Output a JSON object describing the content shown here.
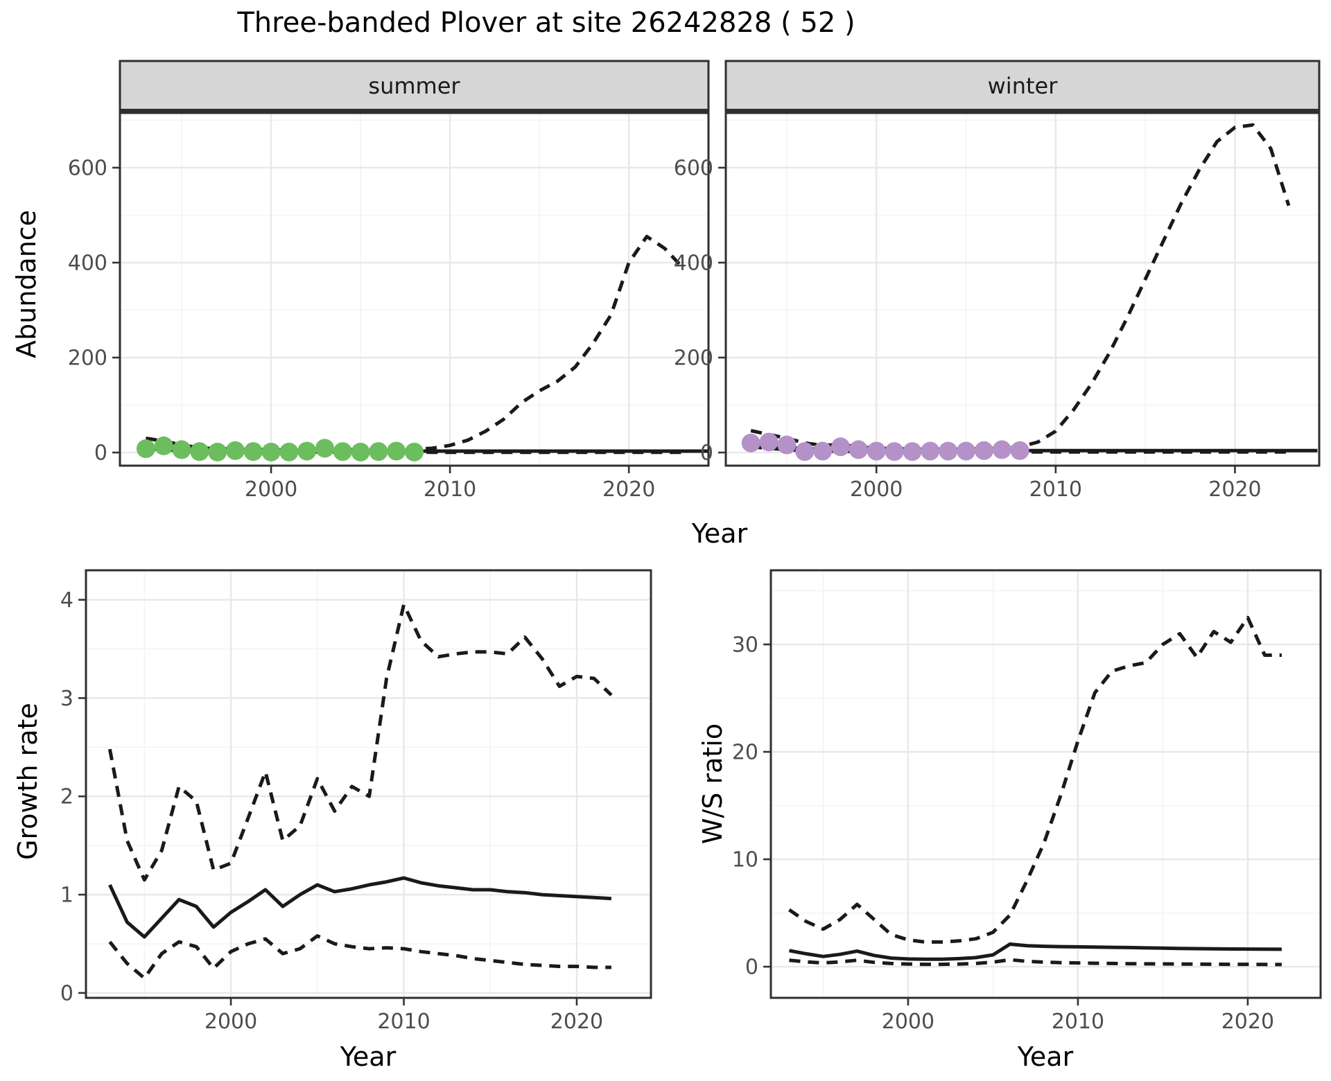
{
  "title": "Three-banded Plover at site 26242828 ( 52 )",
  "colors": {
    "summer_point": "#6cbd5e",
    "winter_point": "#b492c8",
    "line": "#1a1a1a",
    "strip_bg": "#d6d6d6",
    "panel_border": "#2f2f2f",
    "grid_major": "#e8e8e8",
    "grid_minor": "#f4f4f4",
    "tick_label": "#4d4d4d",
    "tick_mark": "#333333"
  },
  "axis_titles": {
    "abundance": "Abundance",
    "year_top": "Year",
    "growth": "Growth rate",
    "year_bottom_left": "Year",
    "ws": "W/S ratio",
    "year_bottom_right": "Year"
  },
  "chart_data": [
    {
      "id": "abundance-summer",
      "type": "line",
      "facet_label": "summer",
      "xlabel": "Year",
      "ylabel": "Abundance",
      "xlim": [
        1991.55,
        2024.45
      ],
      "ylim": [
        -27.7,
        715.3
      ],
      "xticks": [
        2000,
        2010,
        2020
      ],
      "yticks": [
        0,
        200,
        400,
        600
      ],
      "x_minor": [
        1995,
        2005,
        2015
      ],
      "y_minor": [
        100,
        300,
        500,
        700
      ],
      "series": [
        {
          "name": "fit",
          "style": "solid",
          "x": [
            1993,
            1994,
            1995,
            1996,
            1997,
            1998,
            1999,
            2000,
            2001,
            2002,
            2003,
            2004,
            2005,
            2006,
            2007,
            2008,
            2009,
            2010,
            2011,
            2012,
            2013,
            2014,
            2015,
            2016,
            2017,
            2018,
            2019,
            2020,
            2021,
            2022,
            2023,
            2024.4
          ],
          "y": [
            12,
            9,
            7,
            5,
            4,
            4,
            3,
            3,
            3,
            3,
            3,
            3,
            3,
            3,
            3,
            3,
            3,
            3,
            3,
            3,
            3,
            3,
            3,
            3,
            3,
            3,
            3,
            3,
            3,
            3,
            3,
            3
          ]
        },
        {
          "name": "upper_ci",
          "style": "dashed",
          "x": [
            1993,
            1994,
            1995,
            1996,
            1997,
            1998,
            1999,
            2000,
            2001,
            2002,
            2003,
            2004,
            2005,
            2006,
            2007,
            2008,
            2009,
            2010,
            2011,
            2012,
            2013,
            2014,
            2015,
            2016,
            2017,
            2018,
            2019,
            2020,
            2021,
            2022,
            2023
          ],
          "y": [
            30,
            24,
            16,
            10,
            8,
            7,
            6,
            6,
            5,
            5,
            6,
            6,
            6,
            6,
            6,
            7,
            9,
            15,
            26,
            45,
            70,
            105,
            130,
            150,
            180,
            230,
            290,
            400,
            455,
            430,
            390
          ]
        },
        {
          "name": "lower_ci",
          "style": "dashed",
          "x": [
            1993,
            1994,
            1995,
            1996,
            1997,
            1998,
            1999,
            2000,
            2001,
            2002,
            2003,
            2004,
            2005,
            2006,
            2007,
            2008,
            2009,
            2010,
            2011,
            2012,
            2013,
            2014,
            2015,
            2016,
            2017,
            2018,
            2019,
            2020,
            2021,
            2022,
            2023
          ],
          "y": [
            8,
            6,
            4,
            2,
            1,
            1,
            1,
            1,
            1,
            1,
            1,
            1,
            1,
            1,
            1,
            1,
            0.5,
            0.5,
            0.5,
            0.5,
            0.5,
            0.5,
            0.5,
            0.5,
            0.5,
            0.5,
            0.5,
            0.5,
            0.5,
            0.5,
            0.5
          ]
        },
        {
          "name": "observed",
          "style": "points",
          "color_key": "summer_point",
          "x": [
            1993,
            1994,
            1995,
            1996,
            1997,
            1998,
            1999,
            2000,
            2001,
            2002,
            2003,
            2004,
            2005,
            2006,
            2007,
            2008
          ],
          "y": [
            8,
            14,
            6,
            2,
            1,
            4,
            2,
            1,
            1,
            3,
            9,
            2,
            1,
            2,
            3,
            1
          ]
        }
      ]
    },
    {
      "id": "abundance-winter",
      "type": "line",
      "facet_label": "winter",
      "xlabel": "Year",
      "ylabel": "Abundance",
      "xlim": [
        1991.6,
        2024.7
      ],
      "ylim": [
        -27.7,
        715.3
      ],
      "xticks": [
        2000,
        2010,
        2020
      ],
      "yticks": [
        0,
        200,
        400,
        600
      ],
      "x_minor": [
        1995,
        2005,
        2015
      ],
      "y_minor": [
        100,
        300,
        500,
        700
      ],
      "series": [
        {
          "name": "fit",
          "style": "solid",
          "x": [
            1993,
            1994,
            1995,
            1996,
            1997,
            1998,
            1999,
            2000,
            2001,
            2002,
            2003,
            2004,
            2005,
            2006,
            2007,
            2008,
            2009,
            2010,
            2011,
            2012,
            2013,
            2014,
            2015,
            2016,
            2017,
            2018,
            2019,
            2020,
            2021,
            2022,
            2023,
            2024.6
          ],
          "y": [
            18,
            14,
            11,
            8,
            7,
            6,
            5,
            5,
            4,
            4,
            4,
            4,
            4,
            4,
            4,
            4,
            4,
            4,
            4,
            4,
            4,
            4,
            4,
            4,
            4,
            4,
            4,
            4,
            4,
            4,
            4,
            4
          ]
        },
        {
          "name": "upper_ci",
          "style": "dashed",
          "x": [
            1993,
            1994,
            1995,
            1996,
            1997,
            1998,
            1999,
            2000,
            2001,
            2002,
            2003,
            2004,
            2005,
            2006,
            2007,
            2008,
            2009,
            2010,
            2011,
            2012,
            2013,
            2014,
            2015,
            2016,
            2017,
            2018,
            2019,
            2020,
            2021,
            2022,
            2023
          ],
          "y": [
            46,
            38,
            30,
            20,
            15,
            17,
            12,
            9,
            8,
            7,
            7,
            7,
            7,
            8,
            9,
            12,
            22,
            45,
            90,
            145,
            210,
            285,
            365,
            445,
            525,
            595,
            655,
            685,
            690,
            640,
            520
          ]
        },
        {
          "name": "lower_ci",
          "style": "dashed",
          "x": [
            1993,
            1994,
            1995,
            1996,
            1997,
            1998,
            1999,
            2000,
            2001,
            2002,
            2003,
            2004,
            2005,
            2006,
            2007,
            2008,
            2009,
            2010,
            2011,
            2012,
            2013,
            2014,
            2015,
            2016,
            2017,
            2018,
            2019,
            2020,
            2021,
            2022,
            2023
          ],
          "y": [
            12,
            9,
            6,
            4,
            3,
            3,
            2,
            2,
            2,
            2,
            2,
            2,
            2,
            2,
            2,
            2,
            1,
            1,
            1,
            1,
            1,
            1,
            1,
            1,
            1,
            1,
            1,
            1,
            1,
            1,
            1
          ]
        },
        {
          "name": "observed",
          "style": "points",
          "color_key": "winter_point",
          "x": [
            1993,
            1994,
            1995,
            1996,
            1997,
            1998,
            1999,
            2000,
            2001,
            2002,
            2003,
            2004,
            2005,
            2006,
            2007,
            2008
          ],
          "y": [
            20,
            22,
            16,
            2,
            3,
            12,
            6,
            3,
            2,
            2,
            3,
            3,
            3,
            4,
            6,
            4
          ]
        }
      ]
    },
    {
      "id": "growth-rate",
      "type": "line",
      "facet_label": null,
      "xlabel": "Year",
      "ylabel": "Growth rate",
      "xlim": [
        1991.62,
        2024.29
      ],
      "ylim": [
        -0.05,
        4.3
      ],
      "xticks": [
        2000,
        2010,
        2020
      ],
      "yticks": [
        0,
        1,
        2,
        3,
        4
      ],
      "x_minor": [
        1995,
        2005,
        2015
      ],
      "y_minor": [
        0.5,
        1.5,
        2.5,
        3.5
      ],
      "series": [
        {
          "name": "fit",
          "style": "solid",
          "x": [
            1993,
            1994,
            1995,
            1996,
            1997,
            1998,
            1999,
            2000,
            2001,
            2002,
            2003,
            2004,
            2005,
            2006,
            2007,
            2008,
            2009,
            2010,
            2011,
            2012,
            2013,
            2014,
            2015,
            2016,
            2017,
            2018,
            2019,
            2020,
            2021,
            2022
          ],
          "y": [
            1.1,
            0.72,
            0.57,
            0.76,
            0.95,
            0.88,
            0.67,
            0.82,
            0.93,
            1.05,
            0.88,
            1.0,
            1.1,
            1.03,
            1.06,
            1.1,
            1.13,
            1.17,
            1.12,
            1.09,
            1.07,
            1.05,
            1.05,
            1.03,
            1.02,
            1.0,
            0.99,
            0.98,
            0.97,
            0.96
          ]
        },
        {
          "name": "upper_ci",
          "style": "dashed",
          "x": [
            1993,
            1994,
            1995,
            1996,
            1997,
            1998,
            1999,
            2000,
            2001,
            2002,
            2003,
            2004,
            2005,
            2006,
            2007,
            2008,
            2009,
            2010,
            2011,
            2012,
            2013,
            2014,
            2015,
            2016,
            2017,
            2018,
            2019,
            2020,
            2021,
            2022
          ],
          "y": [
            2.48,
            1.55,
            1.15,
            1.45,
            2.1,
            1.95,
            1.25,
            1.32,
            1.78,
            2.25,
            1.55,
            1.7,
            2.18,
            1.85,
            2.1,
            2.0,
            3.2,
            3.95,
            3.58,
            3.42,
            3.45,
            3.47,
            3.47,
            3.45,
            3.62,
            3.4,
            3.12,
            3.22,
            3.2,
            3.03
          ]
        },
        {
          "name": "lower_ci",
          "style": "dashed",
          "x": [
            1993,
            1994,
            1995,
            1996,
            1997,
            1998,
            1999,
            2000,
            2001,
            2002,
            2003,
            2004,
            2005,
            2006,
            2007,
            2008,
            2009,
            2010,
            2011,
            2012,
            2013,
            2014,
            2015,
            2016,
            2017,
            2018,
            2019,
            2020,
            2021,
            2022
          ],
          "y": [
            0.52,
            0.3,
            0.15,
            0.4,
            0.52,
            0.47,
            0.25,
            0.42,
            0.5,
            0.55,
            0.4,
            0.45,
            0.58,
            0.5,
            0.47,
            0.45,
            0.46,
            0.45,
            0.42,
            0.4,
            0.38,
            0.35,
            0.33,
            0.31,
            0.29,
            0.28,
            0.27,
            0.27,
            0.26,
            0.26
          ]
        }
      ]
    },
    {
      "id": "ws-ratio",
      "type": "line",
      "facet_label": null,
      "xlabel": "Year",
      "ylabel": "W/S ratio",
      "xlim": [
        1991.92,
        2024.29
      ],
      "ylim": [
        -2.9,
        36.9
      ],
      "xticks": [
        2000,
        2010,
        2020
      ],
      "yticks": [
        0,
        10,
        20,
        30
      ],
      "x_minor": [
        1995,
        2005,
        2015
      ],
      "y_minor": [
        5,
        15,
        25,
        35
      ],
      "series": [
        {
          "name": "fit",
          "style": "solid",
          "x": [
            1993,
            1994,
            1995,
            1996,
            1997,
            1998,
            1999,
            2000,
            2001,
            2002,
            2003,
            2004,
            2005,
            2006,
            2007,
            2008,
            2009,
            2010,
            2011,
            2012,
            2013,
            2014,
            2015,
            2016,
            2017,
            2018,
            2019,
            2020,
            2021,
            2022
          ],
          "y": [
            1.5,
            1.2,
            0.95,
            1.15,
            1.45,
            1.05,
            0.8,
            0.72,
            0.7,
            0.7,
            0.75,
            0.85,
            1.1,
            2.1,
            1.95,
            1.9,
            1.87,
            1.85,
            1.83,
            1.8,
            1.78,
            1.75,
            1.73,
            1.7,
            1.68,
            1.67,
            1.65,
            1.64,
            1.63,
            1.62
          ]
        },
        {
          "name": "upper_ci",
          "style": "dashed",
          "x": [
            1993,
            1994,
            1995,
            1996,
            1997,
            1998,
            1999,
            2000,
            2001,
            2002,
            2003,
            2004,
            2005,
            2006,
            2007,
            2008,
            2009,
            2010,
            2011,
            2012,
            2013,
            2014,
            2015,
            2016,
            2017,
            2018,
            2019,
            2020,
            2021,
            2022
          ],
          "y": [
            5.3,
            4.2,
            3.5,
            4.4,
            5.8,
            4.4,
            3.0,
            2.5,
            2.3,
            2.3,
            2.4,
            2.6,
            3.2,
            4.8,
            8.0,
            11.5,
            16,
            21,
            25.5,
            27.5,
            28,
            28.3,
            30,
            31,
            28.8,
            31.2,
            30.2,
            32.5,
            29,
            29
          ]
        },
        {
          "name": "lower_ci",
          "style": "dashed",
          "x": [
            1993,
            1994,
            1995,
            1996,
            1997,
            1998,
            1999,
            2000,
            2001,
            2002,
            2003,
            2004,
            2005,
            2006,
            2007,
            2008,
            2009,
            2010,
            2011,
            2012,
            2013,
            2014,
            2015,
            2016,
            2017,
            2018,
            2019,
            2020,
            2021,
            2022
          ],
          "y": [
            0.6,
            0.45,
            0.35,
            0.45,
            0.6,
            0.4,
            0.3,
            0.25,
            0.22,
            0.22,
            0.25,
            0.3,
            0.42,
            0.65,
            0.5,
            0.42,
            0.38,
            0.35,
            0.32,
            0.3,
            0.28,
            0.27,
            0.26,
            0.25,
            0.24,
            0.23,
            0.22,
            0.22,
            0.21,
            0.2
          ]
        }
      ]
    }
  ]
}
